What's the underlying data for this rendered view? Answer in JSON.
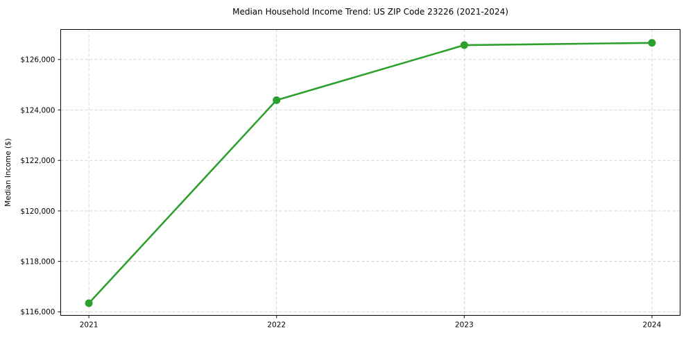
{
  "chart_data": {
    "type": "line",
    "title": "Median Household Income Trend: US ZIP Code 23226 (2021-2024)",
    "xlabel": "",
    "ylabel": "Median Income ($)",
    "x": [
      2021,
      2022,
      2023,
      2024
    ],
    "x_tick_labels": [
      "2021",
      "2022",
      "2023",
      "2024"
    ],
    "series": [
      {
        "name": "median_household_income",
        "values": [
          116340,
          124390,
          126570,
          126660
        ]
      }
    ],
    "y_ticks": [
      116000,
      118000,
      120000,
      122000,
      124000,
      126000
    ],
    "y_tick_labels": [
      "$116,000",
      "$118,000",
      "$120,000",
      "$122,000",
      "$124,000",
      "$126,000"
    ],
    "xlim": [
      2020.85,
      2024.15
    ],
    "ylim": [
      115860,
      127190
    ],
    "grid": true,
    "grid_style": "dashed",
    "legend_position": "none",
    "marker": "circle"
  },
  "style": {
    "line_color": "#2ca02c",
    "marker_color": "#2ca02c",
    "grid_color": "#c8c8c8",
    "spine_color": "#000000",
    "tick_color": "#000000",
    "background_color": "#ffffff",
    "line_width": 2.6,
    "marker_radius": 5.5
  }
}
